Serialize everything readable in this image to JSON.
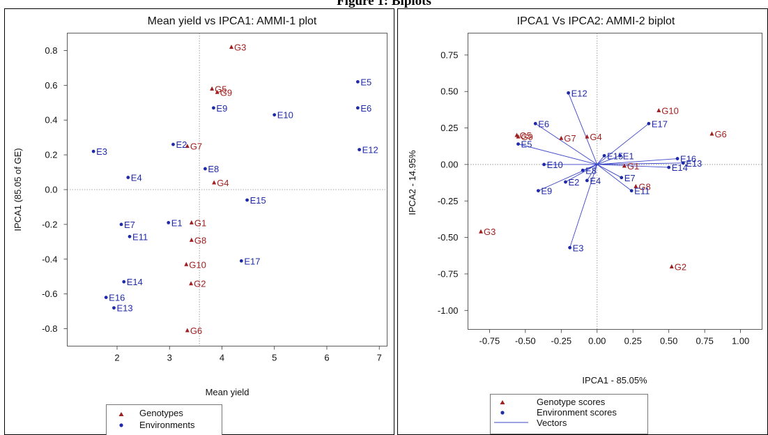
{
  "figure_title": "Figure 1: Biplots",
  "colors": {
    "genotype": "#a01f1f",
    "environment": "#1f2aa8",
    "vector": "#3a45c8"
  },
  "chart_data": [
    {
      "type": "scatter",
      "title": "Mean yield vs IPCA1: AMMI-1 plot",
      "xlabel": "Mean yield",
      "ylabel": "IPCA1 (85.05 of GE)",
      "xlim": [
        1.05,
        7.15
      ],
      "ylim": [
        -0.9,
        0.9
      ],
      "xticks": [
        2,
        3,
        4,
        5,
        6,
        7
      ],
      "yticks": [
        -0.8,
        -0.6,
        -0.4,
        -0.2,
        0.0,
        0.2,
        0.4,
        0.6,
        0.8
      ],
      "ytick_labels": [
        "-0.8",
        "-0.6",
        "-0.4",
        "-0.2",
        "0.0",
        "0.2",
        "0.4",
        "0.6",
        "0.8"
      ],
      "ref_x": 3.57,
      "ref_y": 0.0,
      "legend": {
        "position": "bottom-left",
        "entries": [
          "Genotypes",
          "Environments"
        ]
      },
      "series": [
        {
          "name": "Genotypes",
          "marker": "triangle",
          "points": [
            {
              "label": "G1",
              "x": 3.42,
              "y": -0.19
            },
            {
              "label": "G2",
              "x": 3.41,
              "y": -0.54
            },
            {
              "label": "G3",
              "x": 4.18,
              "y": 0.82
            },
            {
              "label": "G4",
              "x": 3.85,
              "y": 0.04
            },
            {
              "label": "G5",
              "x": 3.81,
              "y": 0.58
            },
            {
              "label": "G6",
              "x": 3.34,
              "y": -0.81
            },
            {
              "label": "G7",
              "x": 3.34,
              "y": 0.25
            },
            {
              "label": "G8",
              "x": 3.42,
              "y": -0.29
            },
            {
              "label": "G9",
              "x": 3.91,
              "y": 0.56
            },
            {
              "label": "G10",
              "x": 3.32,
              "y": -0.43
            }
          ]
        },
        {
          "name": "Environments",
          "marker": "circle",
          "points": [
            {
              "label": "E1",
              "x": 2.98,
              "y": -0.19
            },
            {
              "label": "E2",
              "x": 3.07,
              "y": 0.26
            },
            {
              "label": "E3",
              "x": 1.55,
              "y": 0.22
            },
            {
              "label": "E4",
              "x": 2.21,
              "y": 0.07
            },
            {
              "label": "E5",
              "x": 6.59,
              "y": 0.62
            },
            {
              "label": "E6",
              "x": 6.59,
              "y": 0.47
            },
            {
              "label": "E7",
              "x": 2.08,
              "y": -0.2
            },
            {
              "label": "E8",
              "x": 3.68,
              "y": 0.12
            },
            {
              "label": "E9",
              "x": 3.84,
              "y": 0.47
            },
            {
              "label": "E10",
              "x": 5.0,
              "y": 0.43
            },
            {
              "label": "E11",
              "x": 2.24,
              "y": -0.27
            },
            {
              "label": "E12",
              "x": 6.62,
              "y": 0.23
            },
            {
              "label": "E13",
              "x": 1.94,
              "y": -0.68
            },
            {
              "label": "E14",
              "x": 2.13,
              "y": -0.53
            },
            {
              "label": "E15",
              "x": 4.48,
              "y": -0.06
            },
            {
              "label": "E16",
              "x": 1.79,
              "y": -0.62
            },
            {
              "label": "E17",
              "x": 4.37,
              "y": -0.41
            }
          ]
        }
      ]
    },
    {
      "type": "scatter",
      "title": "IPCA1 Vs IPCA2: AMMI-2 biplot",
      "xlabel": "IPCA1 - 85.05%",
      "ylabel": "IPCA2 - 14.95%",
      "xlim": [
        -0.9,
        1.15
      ],
      "ylim": [
        -1.13,
        0.9
      ],
      "xticks": [
        -0.75,
        -0.5,
        -0.25,
        0.0,
        0.25,
        0.5,
        0.75,
        1.0
      ],
      "xtick_labels": [
        "-0.75",
        "-0.50",
        "-0.25",
        "0.00",
        "0.25",
        "0.50",
        "0.75",
        "1.00"
      ],
      "yticks": [
        -1.0,
        -0.75,
        -0.5,
        -0.25,
        0.0,
        0.25,
        0.5,
        0.75
      ],
      "ytick_labels": [
        "-1.00",
        "-0.75",
        "-0.50",
        "-0.25",
        "0.00",
        "0.25",
        "0.50",
        "0.75"
      ],
      "ref_x": 0.0,
      "ref_y": 0.0,
      "legend": {
        "position": "bottom-left",
        "entries": [
          "Genotype scores",
          "Environment scores",
          "Vectors"
        ]
      },
      "series": [
        {
          "name": "Genotype scores",
          "marker": "triangle",
          "points": [
            {
              "label": "G1",
              "x": 0.19,
              "y": -0.01
            },
            {
              "label": "G2",
              "x": 0.52,
              "y": -0.7
            },
            {
              "label": "G3",
              "x": -0.81,
              "y": -0.46
            },
            {
              "label": "G4",
              "x": -0.07,
              "y": 0.19
            },
            {
              "label": "G5",
              "x": -0.56,
              "y": 0.2
            },
            {
              "label": "G6",
              "x": 0.8,
              "y": 0.21
            },
            {
              "label": "G7",
              "x": -0.25,
              "y": 0.18
            },
            {
              "label": "G8",
              "x": 0.27,
              "y": -0.15
            },
            {
              "label": "G9",
              "x": -0.55,
              "y": 0.19
            },
            {
              "label": "G10",
              "x": 0.43,
              "y": 0.37
            }
          ]
        },
        {
          "name": "Environment scores",
          "marker": "circle",
          "points": [
            {
              "label": "E1",
              "x": 0.16,
              "y": 0.06
            },
            {
              "label": "E2",
              "x": -0.22,
              "y": -0.12
            },
            {
              "label": "E3",
              "x": -0.19,
              "y": -0.57
            },
            {
              "label": "E4",
              "x": -0.07,
              "y": -0.11
            },
            {
              "label": "E5",
              "x": -0.55,
              "y": 0.14
            },
            {
              "label": "E6",
              "x": -0.43,
              "y": 0.28
            },
            {
              "label": "E7",
              "x": 0.17,
              "y": -0.09
            },
            {
              "label": "E8",
              "x": -0.1,
              "y": -0.04
            },
            {
              "label": "E9",
              "x": -0.41,
              "y": -0.18
            },
            {
              "label": "E10",
              "x": -0.37,
              "y": 0.0
            },
            {
              "label": "E11",
              "x": 0.24,
              "y": -0.18
            },
            {
              "label": "E12",
              "x": -0.2,
              "y": 0.49
            },
            {
              "label": "E13",
              "x": 0.6,
              "y": 0.01
            },
            {
              "label": "E14",
              "x": 0.5,
              "y": -0.02
            },
            {
              "label": "E15",
              "x": 0.05,
              "y": 0.06
            },
            {
              "label": "E16",
              "x": 0.56,
              "y": 0.04
            },
            {
              "label": "E17",
              "x": 0.36,
              "y": 0.28
            }
          ]
        }
      ]
    }
  ]
}
